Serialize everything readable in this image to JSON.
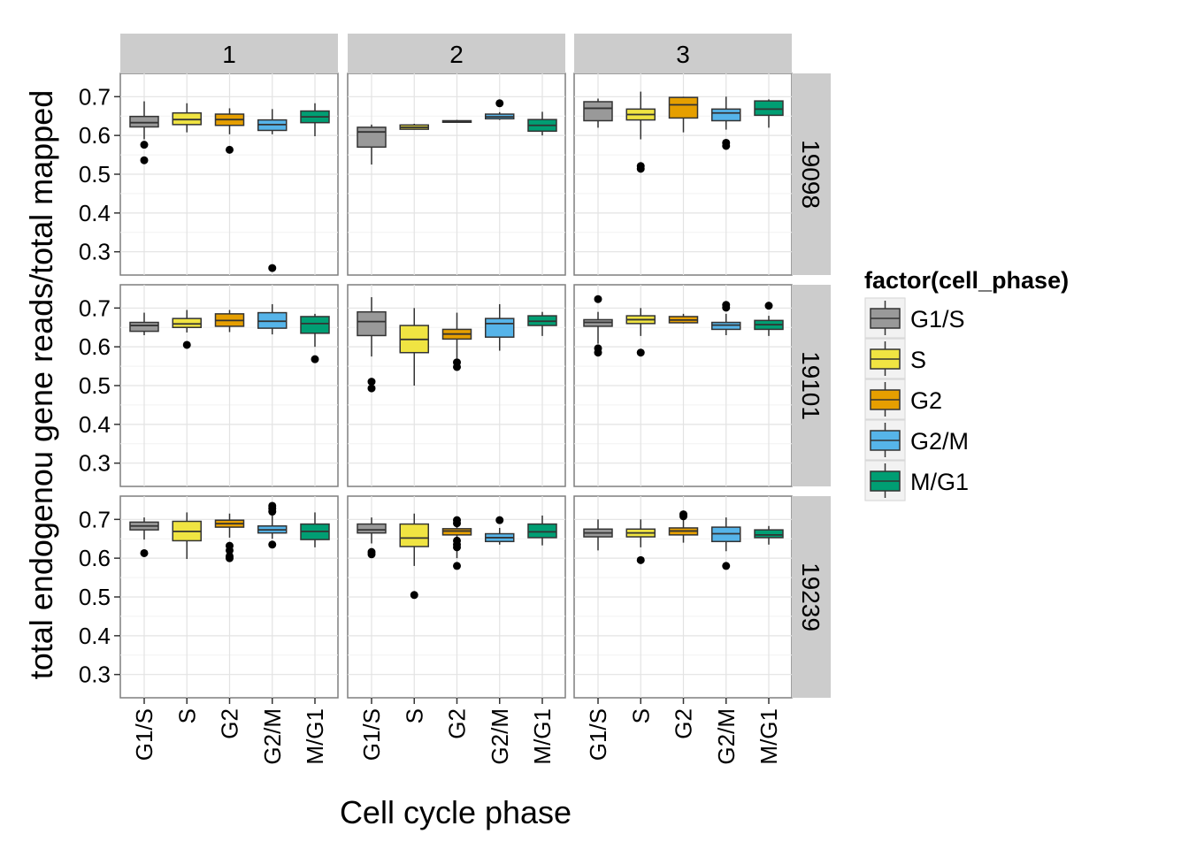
{
  "chart_data": {
    "type": "box",
    "xlabel": "Cell cycle phase",
    "ylabel": "total endogenou gene reads/total mapped",
    "ylim": [
      0.24,
      0.76
    ],
    "y_ticks": [
      0.3,
      0.4,
      0.5,
      0.6,
      0.7
    ],
    "y_tick_labels": [
      "0.3",
      "0.4",
      "0.5",
      "0.6",
      "0.7"
    ],
    "grid": true,
    "legend_position": "right",
    "categories": [
      "G1/S",
      "S",
      "G2",
      "G2/M",
      "M/G1"
    ],
    "col_facets": [
      "1",
      "2",
      "3"
    ],
    "row_facets": [
      "19098",
      "19101",
      "19239"
    ],
    "legend": {
      "title": "factor(cell_phase)",
      "items": [
        {
          "label": "G1/S",
          "color": "#999999"
        },
        {
          "label": "S",
          "color": "#F0E442"
        },
        {
          "label": "G2",
          "color": "#E69F00"
        },
        {
          "label": "G2/M",
          "color": "#56B4E9"
        },
        {
          "label": "M/G1",
          "color": "#009E73"
        }
      ]
    },
    "panels": [
      {
        "row": "19098",
        "col": "1",
        "boxes": [
          {
            "q1": 0.622,
            "median": 0.633,
            "q3": 0.649,
            "lo": 0.59,
            "hi": 0.688,
            "outliers": [
              0.576,
              0.536
            ]
          },
          {
            "q1": 0.628,
            "median": 0.641,
            "q3": 0.658,
            "lo": 0.608,
            "hi": 0.683,
            "outliers": []
          },
          {
            "q1": 0.626,
            "median": 0.641,
            "q3": 0.655,
            "lo": 0.603,
            "hi": 0.67,
            "outliers": [
              0.563
            ]
          },
          {
            "q1": 0.613,
            "median": 0.628,
            "q3": 0.64,
            "lo": 0.603,
            "hi": 0.668,
            "outliers": [
              0.258
            ]
          },
          {
            "q1": 0.633,
            "median": 0.648,
            "q3": 0.663,
            "lo": 0.598,
            "hi": 0.683,
            "outliers": []
          }
        ]
      },
      {
        "row": "19098",
        "col": "2",
        "boxes": [
          {
            "q1": 0.57,
            "median": 0.609,
            "q3": 0.621,
            "lo": 0.525,
            "hi": 0.628,
            "outliers": []
          },
          {
            "q1": 0.616,
            "median": 0.621,
            "q3": 0.627,
            "lo": 0.615,
            "hi": 0.63,
            "outliers": []
          },
          {
            "q1": 0.634,
            "median": 0.636,
            "q3": 0.638,
            "lo": 0.633,
            "hi": 0.64,
            "outliers": []
          },
          {
            "q1": 0.643,
            "median": 0.648,
            "q3": 0.655,
            "lo": 0.64,
            "hi": 0.66,
            "outliers": [
              0.683
            ]
          },
          {
            "q1": 0.611,
            "median": 0.626,
            "q3": 0.641,
            "lo": 0.6,
            "hi": 0.661,
            "outliers": []
          }
        ]
      },
      {
        "row": "19098",
        "col": "3",
        "boxes": [
          {
            "q1": 0.638,
            "median": 0.67,
            "q3": 0.687,
            "lo": 0.62,
            "hi": 0.695,
            "outliers": []
          },
          {
            "q1": 0.64,
            "median": 0.654,
            "q3": 0.668,
            "lo": 0.59,
            "hi": 0.713,
            "outliers": [
              0.521,
              0.514
            ]
          },
          {
            "q1": 0.645,
            "median": 0.679,
            "q3": 0.698,
            "lo": 0.608,
            "hi": 0.7,
            "outliers": []
          },
          {
            "q1": 0.638,
            "median": 0.658,
            "q3": 0.668,
            "lo": 0.615,
            "hi": 0.7,
            "outliers": [
              0.581,
              0.573
            ]
          },
          {
            "q1": 0.652,
            "median": 0.668,
            "q3": 0.689,
            "lo": 0.62,
            "hi": 0.693,
            "outliers": []
          }
        ]
      },
      {
        "row": "19101",
        "col": "1",
        "boxes": [
          {
            "q1": 0.64,
            "median": 0.655,
            "q3": 0.663,
            "lo": 0.63,
            "hi": 0.688,
            "outliers": []
          },
          {
            "q1": 0.65,
            "median": 0.659,
            "q3": 0.673,
            "lo": 0.637,
            "hi": 0.695,
            "outliers": [
              0.605
            ]
          },
          {
            "q1": 0.653,
            "median": 0.668,
            "q3": 0.685,
            "lo": 0.638,
            "hi": 0.695,
            "outliers": []
          },
          {
            "q1": 0.648,
            "median": 0.666,
            "q3": 0.688,
            "lo": 0.632,
            "hi": 0.71,
            "outliers": []
          },
          {
            "q1": 0.635,
            "median": 0.66,
            "q3": 0.678,
            "lo": 0.6,
            "hi": 0.685,
            "outliers": [
              0.568
            ]
          }
        ]
      },
      {
        "row": "19101",
        "col": "2",
        "boxes": [
          {
            "q1": 0.629,
            "median": 0.665,
            "q3": 0.69,
            "lo": 0.575,
            "hi": 0.728,
            "outliers": [
              0.51,
              0.493
            ]
          },
          {
            "q1": 0.585,
            "median": 0.619,
            "q3": 0.655,
            "lo": 0.5,
            "hi": 0.7,
            "outliers": []
          },
          {
            "q1": 0.62,
            "median": 0.633,
            "q3": 0.645,
            "lo": 0.57,
            "hi": 0.688,
            "outliers": [
              0.56,
              0.548
            ]
          },
          {
            "q1": 0.625,
            "median": 0.66,
            "q3": 0.673,
            "lo": 0.59,
            "hi": 0.71,
            "outliers": []
          },
          {
            "q1": 0.655,
            "median": 0.666,
            "q3": 0.68,
            "lo": 0.628,
            "hi": 0.69,
            "outliers": []
          }
        ]
      },
      {
        "row": "19101",
        "col": "3",
        "boxes": [
          {
            "q1": 0.653,
            "median": 0.663,
            "q3": 0.67,
            "lo": 0.608,
            "hi": 0.69,
            "outliers": [
              0.723,
              0.596,
              0.585
            ]
          },
          {
            "q1": 0.66,
            "median": 0.67,
            "q3": 0.68,
            "lo": 0.628,
            "hi": 0.7,
            "outliers": [
              0.585
            ]
          },
          {
            "q1": 0.662,
            "median": 0.669,
            "q3": 0.678,
            "lo": 0.66,
            "hi": 0.685,
            "outliers": []
          },
          {
            "q1": 0.645,
            "median": 0.656,
            "q3": 0.663,
            "lo": 0.63,
            "hi": 0.685,
            "outliers": [
              0.708,
              0.701
            ]
          },
          {
            "q1": 0.645,
            "median": 0.657,
            "q3": 0.668,
            "lo": 0.628,
            "hi": 0.68,
            "outliers": [
              0.706
            ]
          }
        ]
      },
      {
        "row": "19239",
        "col": "1",
        "boxes": [
          {
            "q1": 0.673,
            "median": 0.683,
            "q3": 0.693,
            "lo": 0.648,
            "hi": 0.705,
            "outliers": [
              0.613
            ]
          },
          {
            "q1": 0.645,
            "median": 0.669,
            "q3": 0.695,
            "lo": 0.598,
            "hi": 0.718,
            "outliers": []
          },
          {
            "q1": 0.68,
            "median": 0.689,
            "q3": 0.698,
            "lo": 0.653,
            "hi": 0.715,
            "outliers": [
              0.632,
              0.62,
              0.605,
              0.6
            ]
          },
          {
            "q1": 0.665,
            "median": 0.673,
            "q3": 0.683,
            "lo": 0.65,
            "hi": 0.71,
            "outliers": [
              0.735,
              0.728,
              0.72,
              0.635
            ]
          },
          {
            "q1": 0.648,
            "median": 0.669,
            "q3": 0.688,
            "lo": 0.628,
            "hi": 0.718,
            "outliers": []
          }
        ]
      },
      {
        "row": "19239",
        "col": "2",
        "boxes": [
          {
            "q1": 0.665,
            "median": 0.673,
            "q3": 0.688,
            "lo": 0.638,
            "hi": 0.705,
            "outliers": [
              0.616,
              0.61
            ]
          },
          {
            "q1": 0.63,
            "median": 0.652,
            "q3": 0.688,
            "lo": 0.58,
            "hi": 0.715,
            "outliers": [
              0.505
            ]
          },
          {
            "q1": 0.66,
            "median": 0.67,
            "q3": 0.676,
            "lo": 0.6,
            "hi": 0.693,
            "outliers": [
              0.698,
              0.69,
              0.645,
              0.635,
              0.628,
              0.58
            ]
          },
          {
            "q1": 0.643,
            "median": 0.653,
            "q3": 0.663,
            "lo": 0.635,
            "hi": 0.678,
            "outliers": [
              0.698
            ]
          },
          {
            "q1": 0.653,
            "median": 0.668,
            "q3": 0.688,
            "lo": 0.633,
            "hi": 0.71,
            "outliers": []
          }
        ]
      },
      {
        "row": "19239",
        "col": "3",
        "boxes": [
          {
            "q1": 0.655,
            "median": 0.665,
            "q3": 0.675,
            "lo": 0.62,
            "hi": 0.7,
            "outliers": []
          },
          {
            "q1": 0.655,
            "median": 0.665,
            "q3": 0.675,
            "lo": 0.628,
            "hi": 0.7,
            "outliers": [
              0.595
            ]
          },
          {
            "q1": 0.66,
            "median": 0.67,
            "q3": 0.678,
            "lo": 0.64,
            "hi": 0.7,
            "outliers": [
              0.713,
              0.708
            ]
          },
          {
            "q1": 0.643,
            "median": 0.663,
            "q3": 0.68,
            "lo": 0.618,
            "hi": 0.705,
            "outliers": [
              0.58
            ]
          },
          {
            "q1": 0.653,
            "median": 0.66,
            "q3": 0.673,
            "lo": 0.635,
            "hi": 0.683,
            "outliers": []
          }
        ]
      }
    ]
  }
}
